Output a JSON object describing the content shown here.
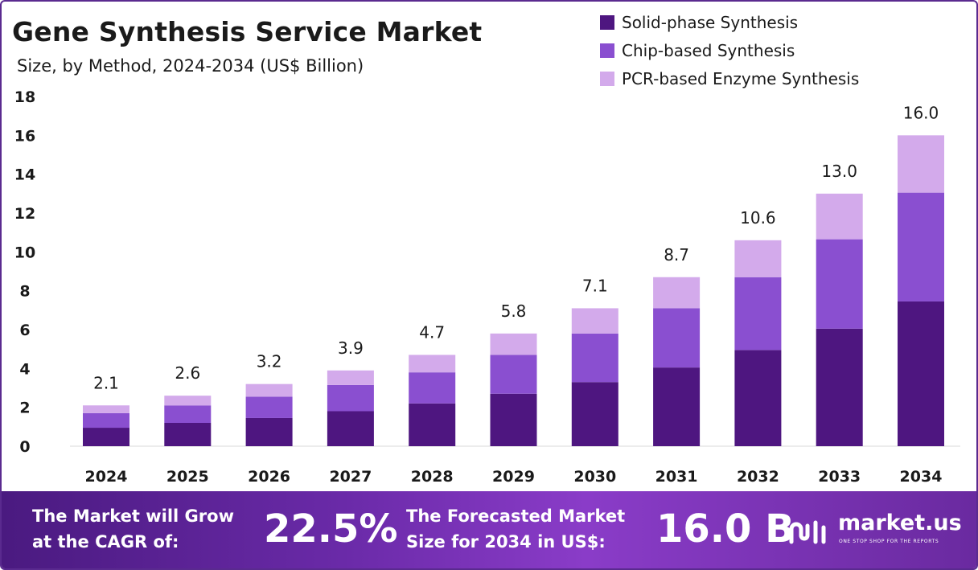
{
  "title": "Gene Synthesis Service Market",
  "subtitle": "Size, by Method, 2024-2034 (US$ Billion)",
  "colors": {
    "solid": "#4e1680",
    "chip": "#8a4fd0",
    "pcr": "#d3aaeb",
    "frame": "#5a2a8f"
  },
  "legend": [
    {
      "label": "Solid-phase Synthesis",
      "color": "#4e1680"
    },
    {
      "label": "Chip-based Synthesis",
      "color": "#8a4fd0"
    },
    {
      "label": "PCR-based Enzyme Synthesis",
      "color": "#d3aaeb"
    }
  ],
  "chart_data": {
    "type": "bar",
    "stacked": true,
    "categories": [
      "2024",
      "2025",
      "2026",
      "2027",
      "2028",
      "2029",
      "2030",
      "2031",
      "2032",
      "2033",
      "2034"
    ],
    "series": [
      {
        "name": "Solid-phase Synthesis",
        "values": [
          0.95,
          1.2,
          1.45,
          1.8,
          2.2,
          2.7,
          3.3,
          4.05,
          4.95,
          6.05,
          7.45
        ]
      },
      {
        "name": "Chip-based Synthesis",
        "values": [
          0.75,
          0.9,
          1.1,
          1.35,
          1.6,
          2.0,
          2.5,
          3.05,
          3.75,
          4.6,
          5.6
        ]
      },
      {
        "name": "PCR-based Enzyme Synthesis",
        "values": [
          0.4,
          0.5,
          0.65,
          0.75,
          0.9,
          1.1,
          1.3,
          1.6,
          1.9,
          2.35,
          2.95
        ]
      }
    ],
    "totals": [
      "2.1",
      "2.6",
      "3.2",
      "3.9",
      "4.7",
      "5.8",
      "7.1",
      "8.7",
      "10.6",
      "13.0",
      "16.0"
    ],
    "yticks": [
      "0",
      "2",
      "4",
      "6",
      "8",
      "10",
      "12",
      "14",
      "16",
      "18"
    ],
    "ylim": [
      0,
      18
    ],
    "xlabel": "",
    "ylabel": "",
    "grid": false,
    "legend_position": "top-right"
  },
  "footer": {
    "cagr_label_1": "The Market will Grow",
    "cagr_label_2": "at the CAGR of:",
    "cagr_value": "22.5%",
    "forecast_label_1": "The Forecasted Market",
    "forecast_label_2": "Size for 2034 in US$:",
    "forecast_value": "16.0 B",
    "logo_text": "market.us",
    "logo_tagline": "ONE STOP SHOP FOR THE REPORTS"
  }
}
